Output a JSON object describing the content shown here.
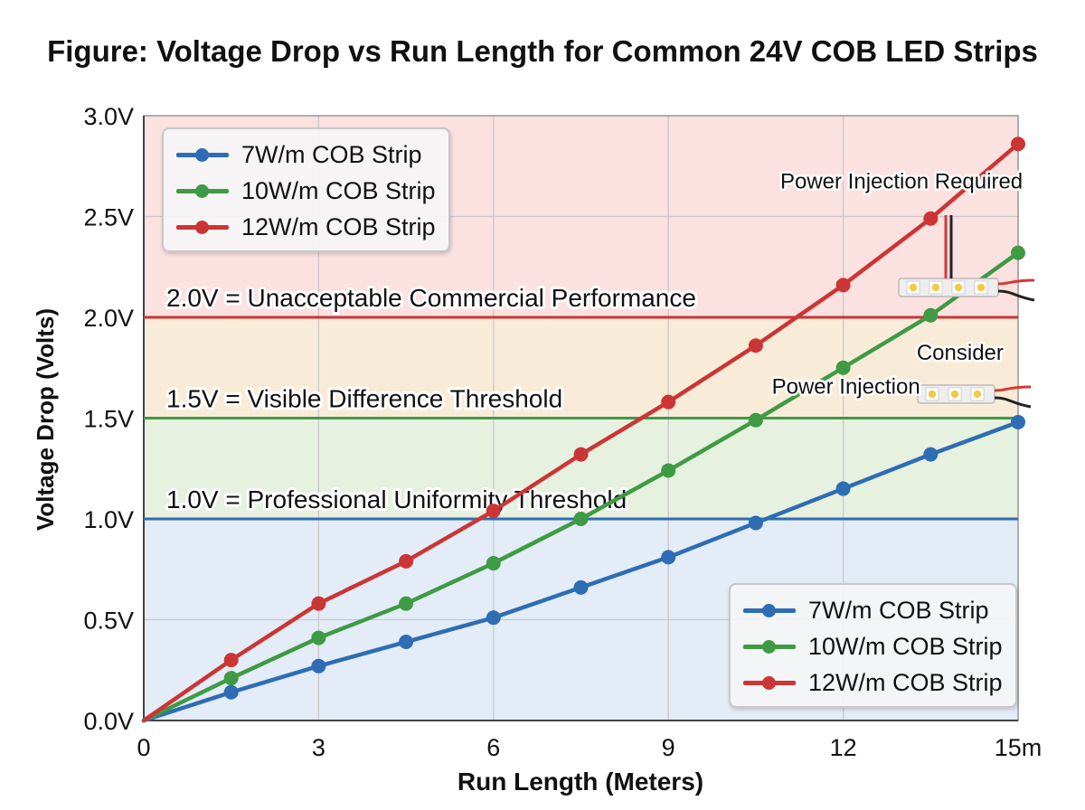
{
  "chart_data": {
    "type": "line",
    "title": "Figure: Voltage Drop vs Run Length for Common 24V COB LED Strips",
    "xlabel": "Run Length (Meters)",
    "ylabel": "Voltage Drop (Volts)",
    "xlim": [
      0,
      15
    ],
    "ylim": [
      0,
      3.0
    ],
    "x_ticks": [
      0,
      3,
      6,
      9,
      12,
      15
    ],
    "x_tick_labels": [
      "0",
      "3",
      "6",
      "9",
      "12",
      "15m"
    ],
    "y_ticks": [
      0,
      0.5,
      1.0,
      1.5,
      2.0,
      2.5,
      3.0
    ],
    "y_tick_labels": [
      "0.0V",
      "0.5V",
      "1.0V",
      "1.5V",
      "2.0V",
      "2.5V",
      "3.0V"
    ],
    "grid": true,
    "x": [
      0,
      1.5,
      3,
      4.5,
      6,
      7.5,
      9,
      10.5,
      12,
      13.5,
      15
    ],
    "series": [
      {
        "name": "7W/m COB Strip",
        "color": "#2e6db4",
        "values": [
          0,
          0.14,
          0.27,
          0.39,
          0.51,
          0.66,
          0.81,
          0.98,
          1.15,
          1.32,
          1.48
        ]
      },
      {
        "name": "10W/m COB Strip",
        "color": "#3f9a44",
        "values": [
          0,
          0.21,
          0.41,
          0.58,
          0.78,
          1.0,
          1.24,
          1.49,
          1.75,
          2.01,
          2.32
        ]
      },
      {
        "name": "12W/m COB Strip",
        "color": "#cc3535",
        "values": [
          0,
          0.3,
          0.58,
          0.79,
          1.04,
          1.32,
          1.58,
          1.86,
          2.16,
          2.49,
          2.86
        ]
      }
    ],
    "bands": [
      {
        "from": 0,
        "to": 1.0,
        "color": "#e3ecf7"
      },
      {
        "from": 1.0,
        "to": 1.5,
        "color": "#e6f1df"
      },
      {
        "from": 1.5,
        "to": 2.0,
        "color": "#f8ecd9"
      },
      {
        "from": 2.0,
        "to": 3.0,
        "color": "#fbe1e0"
      }
    ],
    "thresholds": [
      {
        "y": 1.0,
        "label": "1.0V = Professional Uniformity Threshold",
        "color": "#2e6db4"
      },
      {
        "y": 1.5,
        "label": "1.5V = Visible Difference Threshold",
        "color": "#3f9a44"
      },
      {
        "y": 2.0,
        "label": "2.0V = Unacceptable Commercial Performance",
        "color": "#cc3535"
      }
    ],
    "annotations": [
      {
        "text": "Power Injection Required",
        "x": 13.0,
        "y": 2.64,
        "anchor": "middle"
      },
      {
        "text": "Consider",
        "x": 14.75,
        "y": 1.79,
        "anchor": "end"
      },
      {
        "text": "Power Injection",
        "x": 13.32,
        "y": 1.62,
        "anchor": "end"
      }
    ],
    "legends": [
      {
        "position": "top-left",
        "entries": [
          "7W/m COB Strip",
          "10W/m COB Strip",
          "12W/m COB Strip"
        ]
      },
      {
        "position": "bottom-right",
        "entries": [
          "7W/m COB Strip",
          "10W/m COB Strip",
          "12W/m COB Strip"
        ]
      }
    ]
  }
}
